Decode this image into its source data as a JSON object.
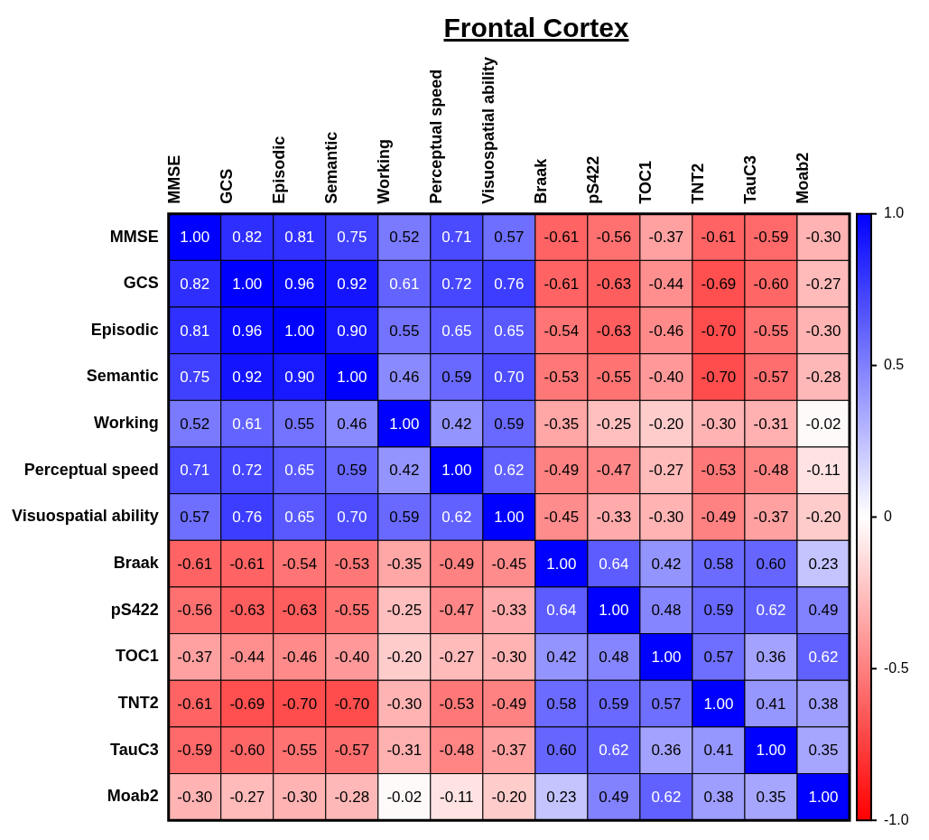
{
  "chart_data": {
    "type": "heatmap",
    "title": "Frontal Cortex",
    "categories": [
      "MMSE",
      "GCS",
      "Episodic",
      "Semantic",
      "Working",
      "Perceptual speed",
      "Visuospatial ability",
      "Braak",
      "pS422",
      "TOC1",
      "TNT2",
      "TauC3",
      "Moab2"
    ],
    "y_categories": [
      "MMSE",
      "GCS",
      "Episodic",
      "Semantic",
      "Working",
      "Perceptual speed",
      "Visuospatial ability",
      "Braak",
      "pS422",
      "TOC1",
      "TNT2",
      "TauC3",
      "Moab2"
    ],
    "cells": [
      [
        1.0,
        0.82,
        0.81,
        0.75,
        0.52,
        0.71,
        0.57,
        -0.61,
        -0.56,
        -0.37,
        -0.61,
        -0.59,
        -0.3
      ],
      [
        0.82,
        1.0,
        0.96,
        0.92,
        0.61,
        0.72,
        0.76,
        -0.61,
        -0.63,
        -0.44,
        -0.69,
        -0.6,
        -0.27
      ],
      [
        0.81,
        0.96,
        1.0,
        0.9,
        0.55,
        0.65,
        0.65,
        -0.54,
        -0.63,
        -0.46,
        -0.7,
        -0.55,
        -0.3
      ],
      [
        0.75,
        0.92,
        0.9,
        1.0,
        0.46,
        0.59,
        0.7,
        -0.53,
        -0.55,
        -0.4,
        -0.7,
        -0.57,
        -0.28
      ],
      [
        0.52,
        0.61,
        0.55,
        0.46,
        1.0,
        0.42,
        0.59,
        -0.35,
        -0.25,
        -0.2,
        -0.3,
        -0.31,
        -0.02
      ],
      [
        0.71,
        0.72,
        0.65,
        0.59,
        0.42,
        1.0,
        0.62,
        -0.49,
        -0.47,
        -0.27,
        -0.53,
        -0.48,
        -0.11
      ],
      [
        0.57,
        0.76,
        0.65,
        0.7,
        0.59,
        0.62,
        1.0,
        -0.45,
        -0.33,
        -0.3,
        -0.49,
        -0.37,
        -0.2
      ],
      [
        -0.61,
        -0.61,
        -0.54,
        -0.53,
        -0.35,
        -0.49,
        -0.45,
        1.0,
        0.64,
        0.42,
        0.58,
        0.6,
        0.23
      ],
      [
        -0.56,
        -0.63,
        -0.63,
        -0.55,
        -0.25,
        -0.47,
        -0.33,
        0.64,
        1.0,
        0.48,
        0.59,
        0.62,
        0.49
      ],
      [
        -0.37,
        -0.44,
        -0.46,
        -0.4,
        -0.2,
        -0.27,
        -0.3,
        0.42,
        0.48,
        1.0,
        0.57,
        0.36,
        0.62
      ],
      [
        -0.61,
        -0.69,
        -0.7,
        -0.7,
        -0.3,
        -0.53,
        -0.49,
        0.58,
        0.59,
        0.57,
        1.0,
        0.41,
        0.38
      ],
      [
        -0.59,
        -0.6,
        -0.55,
        -0.57,
        -0.31,
        -0.48,
        -0.37,
        0.6,
        0.62,
        0.36,
        0.41,
        1.0,
        0.35
      ],
      [
        -0.3,
        -0.27,
        -0.3,
        -0.28,
        -0.02,
        -0.11,
        -0.2,
        0.23,
        0.49,
        0.62,
        0.38,
        0.35,
        1.0
      ]
    ],
    "cell_labels": [
      [
        "1.00",
        "0.82",
        "0.81",
        "0.75",
        "0.52",
        "0.71",
        "0.57",
        "-0.61",
        "-0.56",
        "-0.37",
        "-0.61",
        "-0.59",
        "-0.30"
      ],
      [
        "0.82",
        "1.00",
        "0.96",
        "0.92",
        "0.61",
        "0.72",
        "0.76",
        "-0.61",
        "-0.63",
        "-0.44",
        "-0.69",
        "-0.60",
        "-0.27"
      ],
      [
        "0.81",
        "0.96",
        "1.00",
        "0.90",
        "0.55",
        "0.65",
        "0.65",
        "-0.54",
        "-0.63",
        "-0.46",
        "-0.70",
        "-0.55",
        "-0.30"
      ],
      [
        "0.75",
        "0.92",
        "0.90",
        "1.00",
        "0.46",
        "0.59",
        "0.70",
        "-0.53",
        "-0.55",
        "-0.40",
        "-0.70",
        "-0.57",
        "-0.28"
      ],
      [
        "0.52",
        "0.61",
        "0.55",
        "0.46",
        "1.00",
        "0.42",
        "0.59",
        "-0.35",
        "-0.25",
        "-0.20",
        "-0.30",
        "-0.31",
        "-0.02"
      ],
      [
        "0.71",
        "0.72",
        "0.65",
        "0.59",
        "0.42",
        "1.00",
        "0.62",
        "-0.49",
        "-0.47",
        "-0.27",
        "-0.53",
        "-0.48",
        "-0.11"
      ],
      [
        "0.57",
        "0.76",
        "0.65",
        "0.70",
        "0.59",
        "0.62",
        "1.00",
        "-0.45",
        "-0.33",
        "-0.30",
        "-0.49",
        "-0.37",
        "-0.20"
      ],
      [
        "-0.61",
        "-0.61",
        "-0.54",
        "-0.53",
        "-0.35",
        "-0.49",
        "-0.45",
        "1.00",
        "0.64",
        "0.42",
        "0.58",
        "0.60",
        "0.23"
      ],
      [
        "-0.56",
        "-0.63",
        "-0.63",
        "-0.55",
        "-0.25",
        "-0.47",
        "-0.33",
        "0.64",
        "1.00",
        "0.48",
        "0.59",
        "0.62",
        "0.49"
      ],
      [
        "-0.37",
        "-0.44",
        "-0.46",
        "-0.40",
        "-0.20",
        "-0.27",
        "-0.30",
        "0.42",
        "0.48",
        "1.00",
        "0.57",
        "0.36",
        "0.62"
      ],
      [
        "-0.61",
        "-0.69",
        "-0.70",
        "-0.70",
        "-0.30",
        "-0.53",
        "-0.49",
        "0.58",
        "0.59",
        "0.57",
        "1.00",
        "0.41",
        "0.38"
      ],
      [
        "-0.59",
        "-0.60",
        "-0.55",
        "-0.57",
        "-0.31",
        "-0.48",
        "-0.37",
        "0.60",
        "0.62",
        "0.36",
        "0.41",
        "1.00",
        "0.35"
      ],
      [
        "-0.30",
        "-0.27",
        "-0.30",
        "-0.28",
        "-0.02",
        "-0.11",
        "-0.20",
        "0.23",
        "0.49",
        "0.62",
        "0.38",
        "0.35",
        "1.00"
      ]
    ],
    "data_labels": true,
    "clim": [
      -1,
      1
    ],
    "cticks": [
      {
        "value": 1,
        "label": "1.0"
      },
      {
        "value": 0.5,
        "label": "0.5"
      },
      {
        "value": 0,
        "label": "0"
      },
      {
        "value": -0.5,
        "label": "-0.5"
      },
      {
        "value": -1,
        "label": "-1.0"
      }
    ]
  }
}
